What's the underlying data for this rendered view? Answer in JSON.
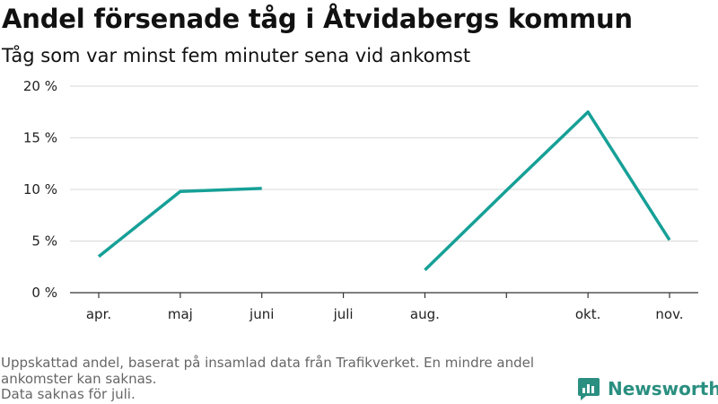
{
  "title": "Andel försenade tåg i Åtvidabergs kommun",
  "subtitle": "Tåg som var minst fem minuter sena vid ankomst",
  "footer": {
    "line1": "Uppskattad andel, baserat på insamlad data från Trafikverket. En mindre andel ankomster kan saknas.",
    "line2": "Data saknas för juli."
  },
  "brand": {
    "name": "Newsworthy",
    "icon": "newsworthy-logo-icon",
    "color": "#2a8f80"
  },
  "chart_data": {
    "type": "line",
    "categories": [
      "apr.",
      "maj",
      "juni",
      "juli",
      "aug.",
      "",
      "okt.",
      "nov."
    ],
    "series": [
      {
        "values": [
          3.5,
          9.8,
          10.1,
          null,
          2.2,
          9.9,
          17.5,
          5.1
        ],
        "color": "#16a097"
      }
    ],
    "yticks": [
      "0 %",
      "5 %",
      "10 %",
      "15 %",
      "20 %"
    ],
    "ylim": [
      0,
      20
    ],
    "grid": true,
    "legend": "none"
  }
}
